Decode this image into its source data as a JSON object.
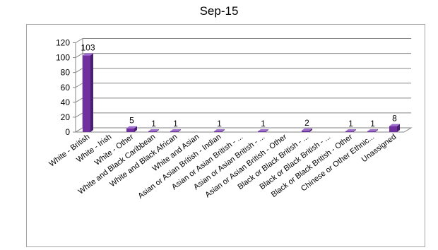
{
  "chart_data": {
    "type": "bar",
    "title": "Sep-15",
    "xlabel": "",
    "ylabel": "",
    "ylim": [
      0,
      120
    ],
    "yticks": [
      0,
      20,
      40,
      60,
      80,
      100,
      120
    ],
    "grid": true,
    "legend": "none",
    "bar_color": "#7030a0",
    "categories": [
      "White - British",
      "White - Irish",
      "White - Other",
      "White and Black Caribbean",
      "White and Black African",
      "White and Asian",
      "Asian or Asian British - Indian",
      "Asian or Asian British - ...",
      "Asian or Asian British - ...",
      "Asian or Asian British - Other",
      "Black or Black British - ...",
      "Black or Black British - ...",
      "Black or Black British - Other",
      "Chinese or Other Ethnic...",
      "Unassigned"
    ],
    "values": [
      103,
      0,
      5,
      1,
      1,
      0,
      1,
      0,
      1,
      0,
      2,
      0,
      1,
      1,
      8
    ],
    "data_labels": [
      "103",
      "",
      "5",
      "1",
      "1",
      "",
      "1",
      "",
      "1",
      "",
      "2",
      "",
      "1",
      "1",
      "8"
    ]
  }
}
